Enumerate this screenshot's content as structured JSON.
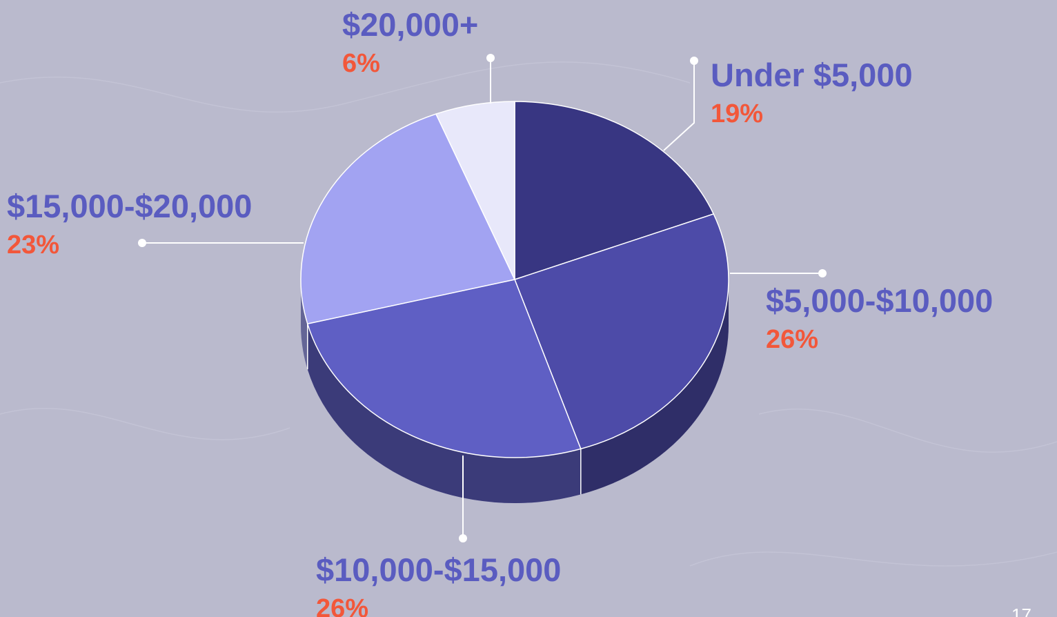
{
  "chart_data": {
    "type": "pie",
    "categories": [
      "Under $5,000",
      "$5,000-$10,000",
      "$10,000-$15,000",
      "$15,000-$20,000",
      "$20,000+"
    ],
    "values": [
      19,
      26,
      26,
      23,
      6
    ],
    "value_labels": [
      "19%",
      "26%",
      "26%",
      "23%",
      "6%"
    ],
    "colors": [
      "#383682",
      "#4d4ba8",
      "#5f5fc4",
      "#a2a3f2",
      "#e8e8fa"
    ]
  },
  "page_number": "17"
}
